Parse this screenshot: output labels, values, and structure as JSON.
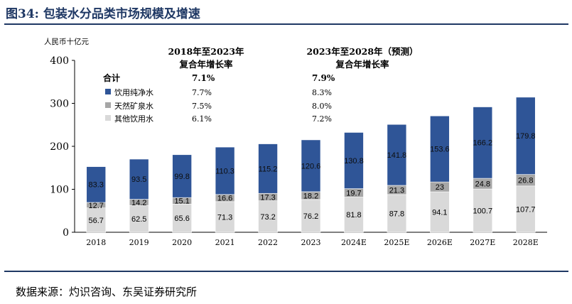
{
  "title": "图34:  包装水分品类市场规模及增速",
  "source": "数据来源：灼识咨询、东吴证券研究所",
  "colors": {
    "drinking_water": "#2f5597",
    "mineral_water": "#a6a6a6",
    "other_water": "#d9d9d9",
    "title": "#1f3864"
  },
  "chart_data": {
    "type": "bar",
    "stacked": true,
    "unit_label": "人民币十亿元",
    "categories": [
      "2018",
      "2019",
      "2020",
      "2021",
      "2022",
      "2023",
      "2024E",
      "2025E",
      "2026E",
      "2027E",
      "2028E"
    ],
    "ylim": [
      0,
      400
    ],
    "yticks": [
      0,
      100,
      200,
      300,
      400
    ],
    "series": [
      {
        "name": "其他饮用水",
        "color_key": "other_water",
        "values": [
          56.7,
          62.5,
          65.6,
          71.3,
          73.2,
          76.2,
          81.8,
          87.8,
          94.1,
          100.7,
          107.7
        ]
      },
      {
        "name": "天然矿泉水",
        "color_key": "mineral_water",
        "values": [
          12.7,
          14.2,
          15.1,
          16.6,
          17.3,
          18.2,
          19.7,
          21.3,
          23,
          24.8,
          26.8
        ]
      },
      {
        "name": "饮用纯净水",
        "color_key": "drinking_water",
        "values": [
          83.3,
          93.5,
          99.8,
          110.3,
          115.2,
          120.6,
          130.8,
          141.8,
          153.6,
          166.2,
          179.8
        ]
      }
    ],
    "cagr_table": {
      "header_1": [
        "2018年至2023年",
        "复合年增长率"
      ],
      "header_2": [
        "2023年至2028年（预测）",
        "复合年增长率"
      ],
      "rows": [
        {
          "label": "合计",
          "v1": "7.1%",
          "v2": "7.9%",
          "bold": true
        },
        {
          "label": "饮用纯净水",
          "v1": "7.7%",
          "v2": "8.3%",
          "color_key": "drinking_water"
        },
        {
          "label": "天然矿泉水",
          "v1": "7.5%",
          "v2": "8.0%",
          "color_key": "mineral_water"
        },
        {
          "label": "其他饮用水",
          "v1": "6.1%",
          "v2": "7.2%",
          "color_key": "other_water"
        }
      ]
    }
  }
}
